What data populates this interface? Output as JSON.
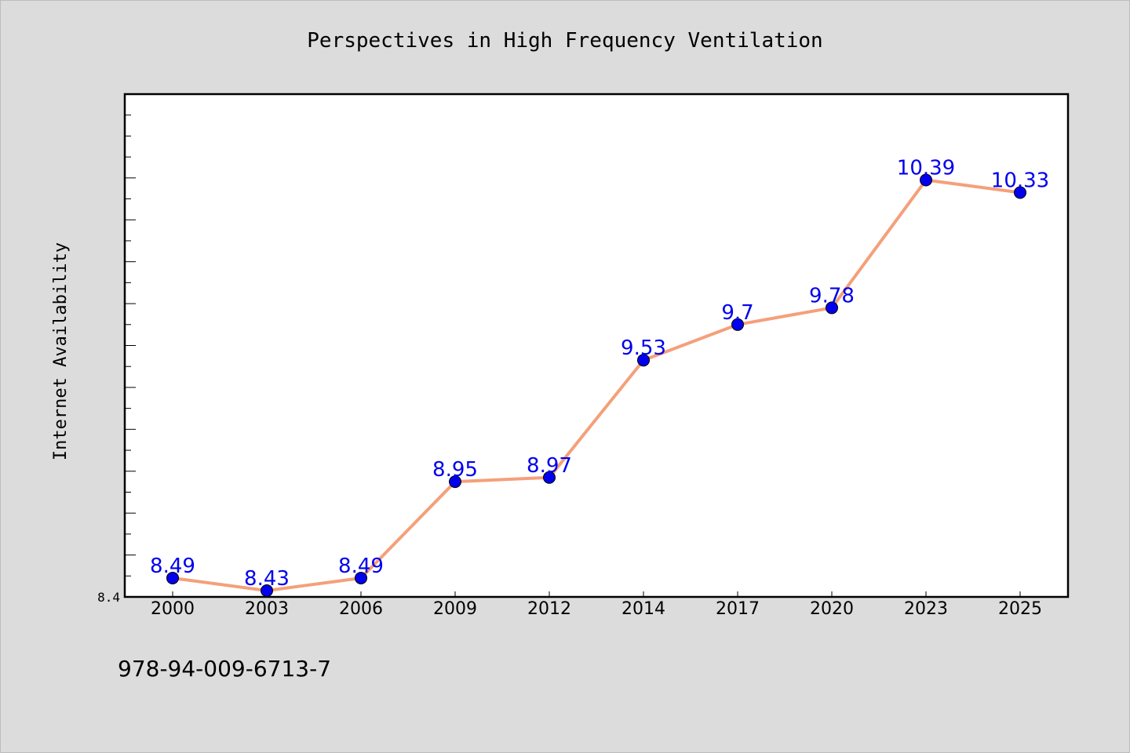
{
  "chart_data": {
    "type": "line",
    "title": "Perspectives in High Frequency Ventilation",
    "xlabel": "",
    "ylabel": "Internet Availability",
    "categories": [
      "2000",
      "2003",
      "2006",
      "2009",
      "2012",
      "2014",
      "2017",
      "2020",
      "2023",
      "2025"
    ],
    "series": [
      {
        "values": [
          8.49,
          8.43,
          8.49,
          8.95,
          8.97,
          9.53,
          9.7,
          9.78,
          10.39,
          10.33
        ],
        "data_labels": [
          "8.49",
          "8.43",
          "8.49",
          "8.95",
          "8.97",
          "9.53",
          "9.7",
          "9.78",
          "10.39",
          "10.33"
        ],
        "line_color": "#f4a07a",
        "marker_color": "#0000ee"
      }
    ],
    "ylim": [
      8.4,
      10.8
    ],
    "y_tick_labels": [
      "8.4"
    ],
    "y_minor_ticks": [
      8.5,
      8.6,
      8.7,
      8.8,
      8.9,
      9.0,
      9.1,
      9.2,
      9.3,
      9.4,
      9.5,
      9.6,
      9.7,
      9.8,
      9.9,
      10.0,
      10.1,
      10.2,
      10.3,
      10.4,
      10.5,
      10.6,
      10.7
    ],
    "y_major_ticks": [
      8.6,
      8.8,
      9.0,
      9.2,
      9.4,
      9.6,
      9.8,
      10.0,
      10.2,
      10.4
    ],
    "grid": false,
    "legend": "none"
  },
  "footer": {
    "isbn": "978-94-009-6713-7"
  },
  "colors": {
    "background": "#dcdcdc",
    "plot_background": "#ffffff",
    "line": "#f4a07a",
    "marker": "#0000ee",
    "label": "#0000ee"
  }
}
